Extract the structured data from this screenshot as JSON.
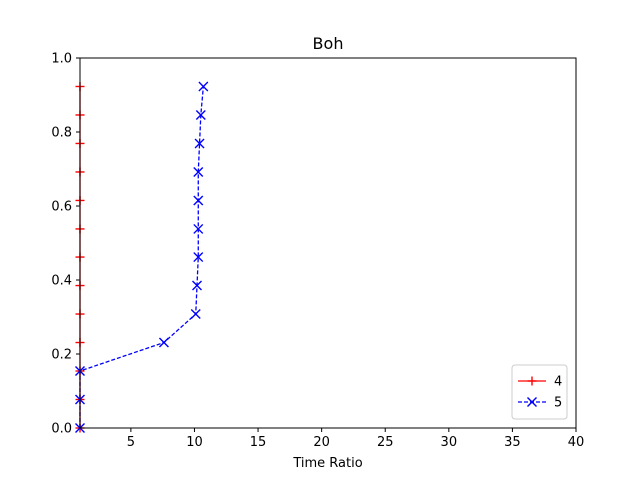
{
  "chart_data": {
    "type": "line",
    "title": "Boh",
    "xlabel": "Time Ratio",
    "ylabel": "",
    "xlim": [
      1,
      40
    ],
    "ylim": [
      0,
      1.0
    ],
    "xticks": [
      5,
      10,
      15,
      20,
      25,
      30,
      35,
      40
    ],
    "yticks": [
      0.0,
      0.2,
      0.4,
      0.6,
      0.8,
      1.0
    ],
    "xtick_labels": [
      "5",
      "10",
      "15",
      "20",
      "25",
      "30",
      "35",
      "40"
    ],
    "ytick_labels": [
      "0.0",
      "0.2",
      "0.4",
      "0.6",
      "0.8",
      "1.0"
    ],
    "legend_position": "lower-right",
    "series": [
      {
        "name": "4",
        "color": "#ff0000",
        "linestyle": "solid",
        "marker": "+",
        "x": [
          1,
          1,
          1,
          1,
          1,
          1,
          1,
          1,
          1,
          1,
          1,
          1,
          1
        ],
        "y": [
          0.0,
          0.077,
          0.154,
          0.231,
          0.308,
          0.385,
          0.462,
          0.538,
          0.615,
          0.692,
          0.769,
          0.846,
          0.923
        ]
      },
      {
        "name": "5",
        "color": "#0000ff",
        "linestyle": "dashed",
        "marker": "x",
        "x": [
          1.0,
          1.0,
          1.0,
          7.6,
          10.1,
          10.2,
          10.3,
          10.3,
          10.3,
          10.3,
          10.4,
          10.5,
          10.7
        ],
        "y": [
          0.0,
          0.077,
          0.154,
          0.231,
          0.308,
          0.385,
          0.462,
          0.538,
          0.615,
          0.692,
          0.769,
          0.846,
          0.923
        ]
      }
    ]
  }
}
